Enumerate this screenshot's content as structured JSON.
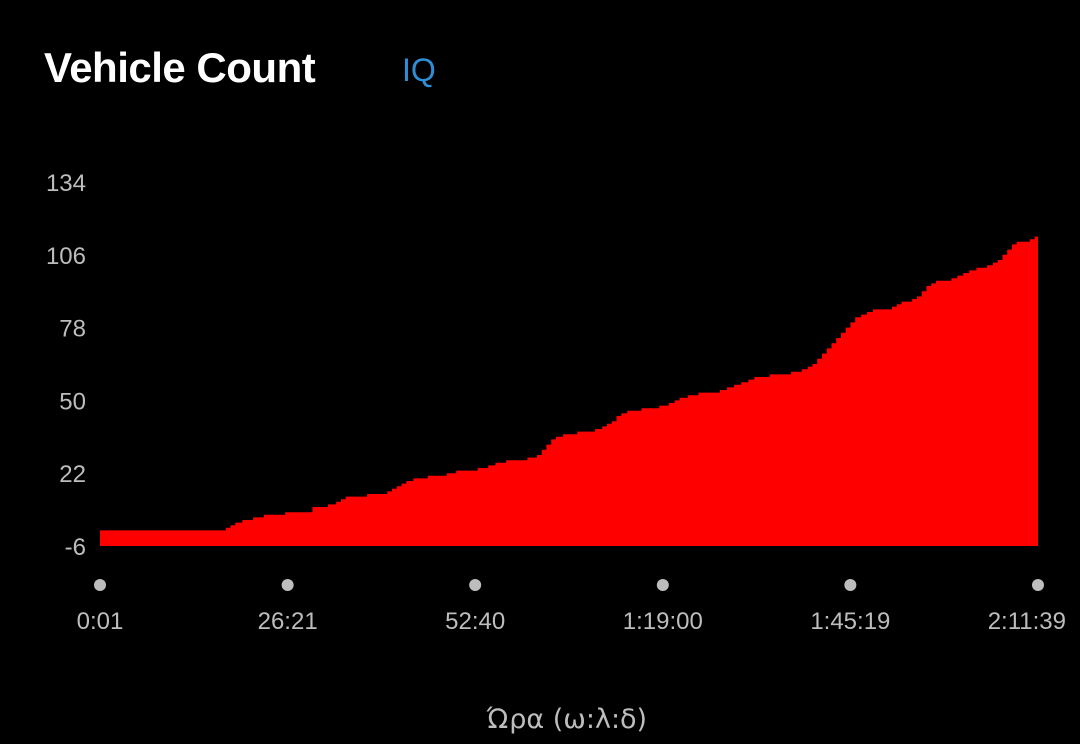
{
  "header": {
    "title": "Vehicle Count",
    "badge": "IQ"
  },
  "colors": {
    "background": "#000000",
    "fill": "#ff0000",
    "badge": "#2f8fd6",
    "tick_text": "#bdbdbd",
    "tick_dot": "#bdbdbd"
  },
  "chart_data": {
    "type": "area",
    "title": "Vehicle Count",
    "xlabel": "Ώρα (ω:λ:δ)",
    "ylabel": "",
    "ylim": [
      -6,
      134
    ],
    "yticks": [
      -6,
      22,
      50,
      78,
      106,
      134
    ],
    "xlim": [
      "0:01",
      "2:11:39"
    ],
    "xticks": [
      "0:01",
      "26:21",
      "52:40",
      "1:19:00",
      "1:45:19",
      "2:11:39"
    ],
    "grid": false,
    "legend": "none",
    "step": true,
    "points": [
      [
        "0:01",
        0
      ],
      [
        "17:00",
        0
      ],
      [
        "17:40",
        1
      ],
      [
        "18:20",
        2
      ],
      [
        "19:00",
        3
      ],
      [
        "20:00",
        4
      ],
      [
        "21:30",
        5
      ],
      [
        "23:00",
        6
      ],
      [
        "26:00",
        7
      ],
      [
        "29:50",
        9
      ],
      [
        "32:00",
        10
      ],
      [
        "33:10",
        11
      ],
      [
        "33:50",
        12
      ],
      [
        "34:30",
        13
      ],
      [
        "37:30",
        14
      ],
      [
        "40:20",
        15
      ],
      [
        "41:00",
        16
      ],
      [
        "41:40",
        17
      ],
      [
        "42:20",
        18
      ],
      [
        "43:00",
        19
      ],
      [
        "44:00",
        20
      ],
      [
        "46:00",
        21
      ],
      [
        "48:40",
        22
      ],
      [
        "50:00",
        23
      ],
      [
        "53:00",
        24
      ],
      [
        "54:30",
        25
      ],
      [
        "55:30",
        26
      ],
      [
        "57:00",
        27
      ],
      [
        "60:00",
        28
      ],
      [
        "61:20",
        29
      ],
      [
        "62:00",
        31
      ],
      [
        "62:40",
        33
      ],
      [
        "63:20",
        35
      ],
      [
        "64:00",
        36
      ],
      [
        "65:00",
        37
      ],
      [
        "67:00",
        38
      ],
      [
        "69:30",
        39
      ],
      [
        "70:30",
        40
      ],
      [
        "71:10",
        41
      ],
      [
        "71:50",
        42
      ],
      [
        "72:30",
        44
      ],
      [
        "73:10",
        45
      ],
      [
        "74:00",
        46
      ],
      [
        "76:00",
        47
      ],
      [
        "78:30",
        48
      ],
      [
        "79:50",
        49
      ],
      [
        "80:40",
        50
      ],
      [
        "81:20",
        51
      ],
      [
        "82:30",
        52
      ],
      [
        "84:00",
        53
      ],
      [
        "87:00",
        54
      ],
      [
        "88:00",
        55
      ],
      [
        "89:00",
        56
      ],
      [
        "90:00",
        57
      ],
      [
        "91:00",
        58
      ],
      [
        "91:50",
        59
      ],
      [
        "94:00",
        60
      ],
      [
        "97:00",
        61
      ],
      [
        "98:30",
        62
      ],
      [
        "99:20",
        63
      ],
      [
        "100:00",
        64
      ],
      [
        "100:40",
        66
      ],
      [
        "101:20",
        68
      ],
      [
        "102:00",
        70
      ],
      [
        "102:40",
        72
      ],
      [
        "103:20",
        74
      ],
      [
        "104:00",
        76
      ],
      [
        "104:40",
        78
      ],
      [
        "105:20",
        80
      ],
      [
        "106:00",
        82
      ],
      [
        "106:50",
        83
      ],
      [
        "107:40",
        84
      ],
      [
        "108:30",
        85
      ],
      [
        "111:10",
        86
      ],
      [
        "111:50",
        87
      ],
      [
        "112:30",
        88
      ],
      [
        "114:00",
        89
      ],
      [
        "114:40",
        90
      ],
      [
        "115:20",
        92
      ],
      [
        "116:00",
        94
      ],
      [
        "116:40",
        95
      ],
      [
        "117:20",
        96
      ],
      [
        "119:30",
        97
      ],
      [
        "120:20",
        98
      ],
      [
        "121:10",
        99
      ],
      [
        "122:00",
        100
      ],
      [
        "123:00",
        101
      ],
      [
        "124:30",
        102
      ],
      [
        "125:20",
        103
      ],
      [
        "126:00",
        104
      ],
      [
        "126:40",
        106
      ],
      [
        "127:20",
        108
      ],
      [
        "128:00",
        110
      ],
      [
        "128:40",
        111
      ],
      [
        "130:30",
        112
      ],
      [
        "131:10",
        113
      ],
      [
        "131:39",
        113
      ]
    ]
  }
}
